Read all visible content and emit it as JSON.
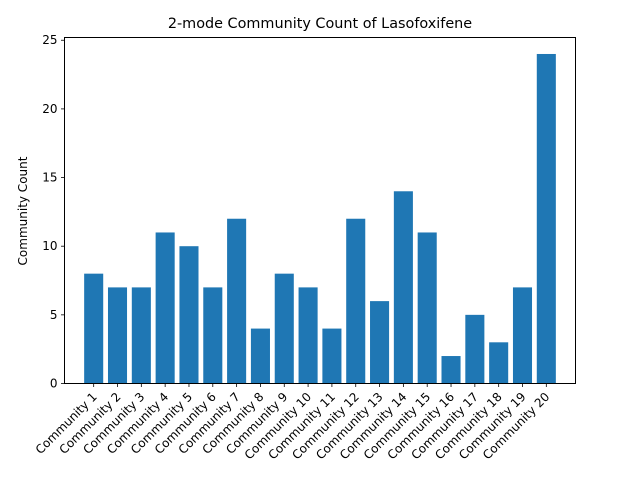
{
  "chart_data": {
    "type": "bar",
    "title": "2-mode Community Count of Lasofoxifene",
    "xlabel": "",
    "ylabel": "Community Count",
    "categories": [
      "Community 1",
      "Community 2",
      "Community 3",
      "Community 4",
      "Community 5",
      "Community 6",
      "Community 7",
      "Community 8",
      "Community 9",
      "Community 10",
      "Community 11",
      "Community 12",
      "Community 13",
      "Community 14",
      "Community 15",
      "Community 16",
      "Community 17",
      "Community 18",
      "Community 19",
      "Community 20"
    ],
    "values": [
      8,
      7,
      7,
      11,
      10,
      7,
      12,
      4,
      8,
      7,
      4,
      12,
      6,
      14,
      11,
      2,
      5,
      3,
      7,
      24
    ],
    "ylim": [
      0,
      25.2
    ],
    "yticks": [
      0,
      5,
      10,
      15,
      20,
      25
    ],
    "grid": false,
    "bar_color": "#1f77b4"
  }
}
